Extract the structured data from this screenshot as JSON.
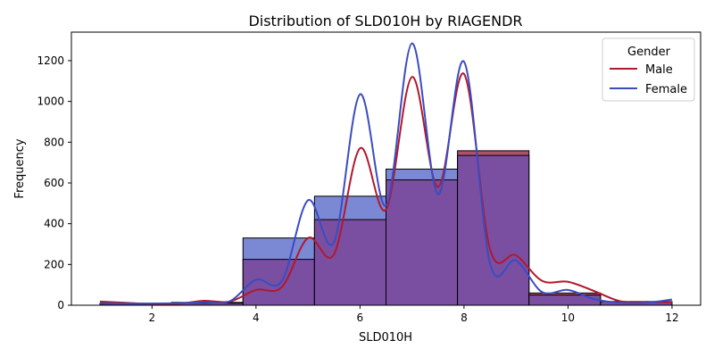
{
  "chart_data": {
    "type": "histogram",
    "title": "Distribution of SLD010H by RIAGENDR",
    "xlabel": "SLD010H",
    "ylabel": "Frequency",
    "xlim": [
      0.45,
      12.55
    ],
    "ylim": [
      0,
      1340
    ],
    "xticks": [
      2,
      4,
      6,
      8,
      10,
      12
    ],
    "yticks": [
      0,
      200,
      400,
      600,
      800,
      1000,
      1200
    ],
    "legend": {
      "title": "Gender",
      "position": "top-right"
    },
    "bin_edges": [
      1.0,
      2.375,
      3.75,
      5.125,
      6.5,
      7.875,
      9.25,
      10.625,
      12.0
    ],
    "series": [
      {
        "name": "Male",
        "color": "#b2182b",
        "bar_fill": "#b0506e",
        "counts": [
          10,
          14,
          225,
          420,
          615,
          758,
          60,
          18
        ],
        "kde": [
          [
            1,
            18
          ],
          [
            1.5,
            12
          ],
          [
            2,
            6
          ],
          [
            2.5,
            7
          ],
          [
            3,
            22
          ],
          [
            3.5,
            18
          ],
          [
            4,
            75
          ],
          [
            4.5,
            90
          ],
          [
            5,
            330
          ],
          [
            5.5,
            250
          ],
          [
            6,
            770
          ],
          [
            6.5,
            470
          ],
          [
            7,
            1120
          ],
          [
            7.5,
            580
          ],
          [
            8,
            1135
          ],
          [
            8.5,
            275
          ],
          [
            9,
            245
          ],
          [
            9.5,
            120
          ],
          [
            10,
            115
          ],
          [
            10.5,
            70
          ],
          [
            11,
            20
          ],
          [
            11.5,
            15
          ],
          [
            12,
            15
          ]
        ]
      },
      {
        "name": "Female",
        "color": "#3a4cc0",
        "bar_fill": "#7b88d4",
        "counts": [
          6,
          10,
          330,
          535,
          668,
          735,
          50,
          18
        ],
        "kde": [
          [
            1,
            10
          ],
          [
            1.5,
            8
          ],
          [
            2,
            8
          ],
          [
            2.5,
            10
          ],
          [
            3,
            14
          ],
          [
            3.5,
            20
          ],
          [
            4,
            125
          ],
          [
            4.5,
            120
          ],
          [
            5,
            515
          ],
          [
            5.5,
            310
          ],
          [
            6,
            1035
          ],
          [
            6.5,
            490
          ],
          [
            7,
            1285
          ],
          [
            7.5,
            545
          ],
          [
            8,
            1195
          ],
          [
            8.5,
            205
          ],
          [
            9,
            220
          ],
          [
            9.5,
            65
          ],
          [
            10,
            75
          ],
          [
            10.5,
            30
          ],
          [
            11,
            12
          ],
          [
            11.5,
            12
          ],
          [
            12,
            28
          ]
        ]
      }
    ],
    "overlap_fill": "#7a4fa2"
  }
}
